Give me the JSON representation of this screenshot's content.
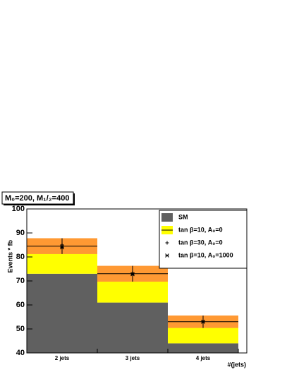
{
  "chart_data": {
    "type": "stacked-histogram",
    "title": "M₀=200, M₁/₂=400",
    "y_label": "Events * fb",
    "x_label": "#(jets)",
    "categories": [
      "2 jets",
      "3 jets",
      "4 jets"
    ],
    "ylim": [
      40,
      100
    ],
    "yticks": [
      40,
      50,
      60,
      70,
      80,
      90,
      100
    ],
    "background": {
      "name": "SM",
      "color": "#606060",
      "values": [
        73,
        61,
        44
      ]
    },
    "signal": {
      "name": "tan β=10, A₀=0",
      "color": "#ffff00",
      "band_color": "#ff9933",
      "values": [
        84.5,
        73,
        53
      ],
      "errors": [
        3.3,
        3.3,
        2.6
      ]
    },
    "markers": [
      {
        "name": "tan β=30, A₀=0",
        "symbol": "+",
        "values": [
          85,
          73.3,
          53
        ]
      },
      {
        "name": "tan β=10, A₀=1000",
        "symbol": "*",
        "values": [
          84,
          72.8,
          53
        ]
      }
    ]
  }
}
